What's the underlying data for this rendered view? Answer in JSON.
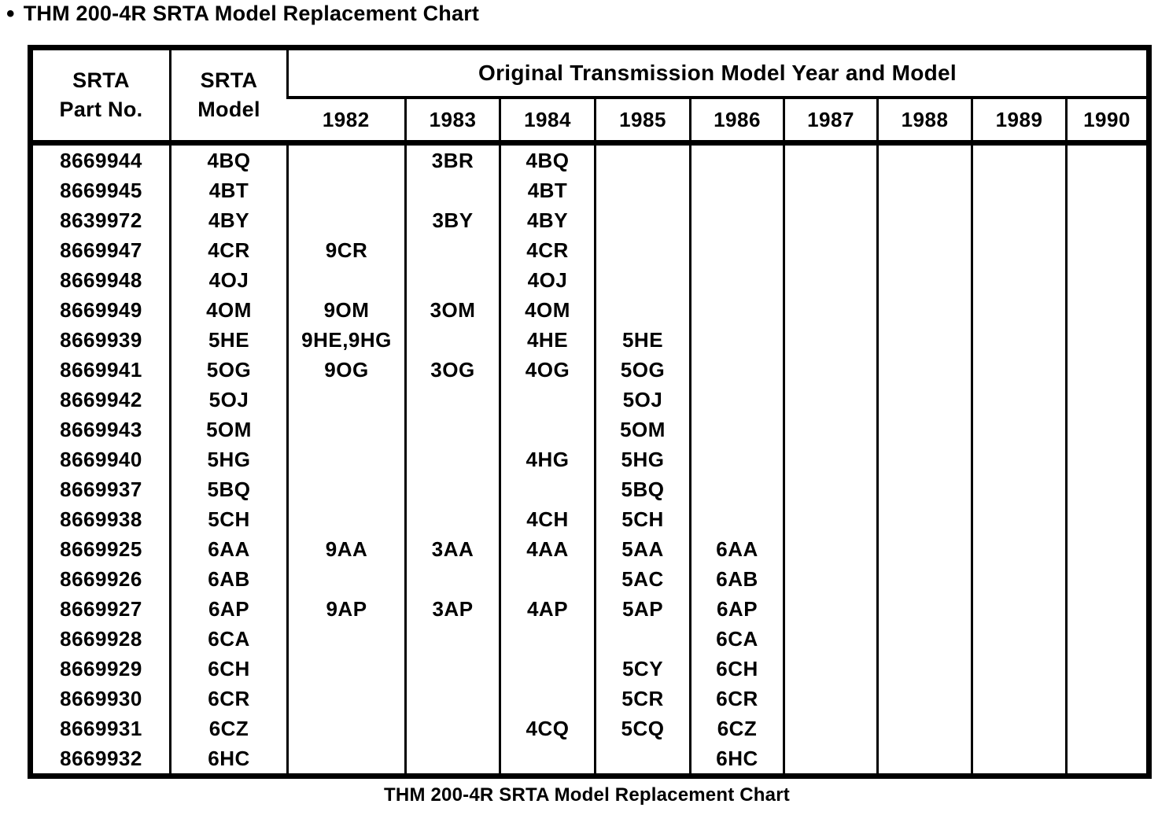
{
  "title": {
    "bullet": "•",
    "text": "THM 200-4R SRTA Model Replacement Chart"
  },
  "caption": "THM 200-4R SRTA Model Replacement Chart",
  "table": {
    "part_no_header": {
      "line1": "SRTA",
      "line2": "Part No."
    },
    "model_header": {
      "line1": "SRTA",
      "line2": "Model"
    },
    "group_header": "Original Transmission Model Year and Model",
    "years": [
      "1982",
      "1983",
      "1984",
      "1985",
      "1986",
      "1987",
      "1988",
      "1989",
      "1990"
    ],
    "rows": [
      {
        "part_no": "8669944",
        "model": "4BQ",
        "cells": [
          "",
          "3BR",
          "4BQ",
          "",
          "",
          "",
          "",
          "",
          ""
        ]
      },
      {
        "part_no": "8669945",
        "model": "4BT",
        "cells": [
          "",
          "",
          "4BT",
          "",
          "",
          "",
          "",
          "",
          ""
        ]
      },
      {
        "part_no": "8639972",
        "model": "4BY",
        "cells": [
          "",
          "3BY",
          "4BY",
          "",
          "",
          "",
          "",
          "",
          ""
        ]
      },
      {
        "part_no": "8669947",
        "model": "4CR",
        "cells": [
          "9CR",
          "",
          "4CR",
          "",
          "",
          "",
          "",
          "",
          ""
        ]
      },
      {
        "part_no": "8669948",
        "model": "4OJ",
        "cells": [
          "",
          "",
          "4OJ",
          "",
          "",
          "",
          "",
          "",
          ""
        ]
      },
      {
        "part_no": "8669949",
        "model": "4OM",
        "cells": [
          "9OM",
          "3OM",
          "4OM",
          "",
          "",
          "",
          "",
          "",
          ""
        ]
      },
      {
        "part_no": "8669939",
        "model": "5HE",
        "cells": [
          "9HE,9HG",
          "",
          "4HE",
          "5HE",
          "",
          "",
          "",
          "",
          ""
        ]
      },
      {
        "part_no": "8669941",
        "model": "5OG",
        "cells": [
          "9OG",
          "3OG",
          "4OG",
          "5OG",
          "",
          "",
          "",
          "",
          ""
        ]
      },
      {
        "part_no": "8669942",
        "model": "5OJ",
        "cells": [
          "",
          "",
          "",
          "5OJ",
          "",
          "",
          "",
          "",
          ""
        ]
      },
      {
        "part_no": "8669943",
        "model": "5OM",
        "cells": [
          "",
          "",
          "",
          "5OM",
          "",
          "",
          "",
          "",
          ""
        ]
      },
      {
        "part_no": "8669940",
        "model": "5HG",
        "cells": [
          "",
          "",
          "4HG",
          "5HG",
          "",
          "",
          "",
          "",
          ""
        ]
      },
      {
        "part_no": "8669937",
        "model": "5BQ",
        "cells": [
          "",
          "",
          "",
          "5BQ",
          "",
          "",
          "",
          "",
          ""
        ]
      },
      {
        "part_no": "8669938",
        "model": "5CH",
        "cells": [
          "",
          "",
          "4CH",
          "5CH",
          "",
          "",
          "",
          "",
          ""
        ]
      },
      {
        "part_no": "8669925",
        "model": "6AA",
        "cells": [
          "9AA",
          "3AA",
          "4AA",
          "5AA",
          "6AA",
          "",
          "",
          "",
          ""
        ]
      },
      {
        "part_no": "8669926",
        "model": "6AB",
        "cells": [
          "",
          "",
          "",
          "5AC",
          "6AB",
          "",
          "",
          "",
          ""
        ]
      },
      {
        "part_no": "8669927",
        "model": "6AP",
        "cells": [
          "9AP",
          "3AP",
          "4AP",
          "5AP",
          "6AP",
          "",
          "",
          "",
          ""
        ]
      },
      {
        "part_no": "8669928",
        "model": "6CA",
        "cells": [
          "",
          "",
          "",
          "",
          "6CA",
          "",
          "",
          "",
          ""
        ]
      },
      {
        "part_no": "8669929",
        "model": "6CH",
        "cells": [
          "",
          "",
          "",
          "5CY",
          "6CH",
          "",
          "",
          "",
          ""
        ]
      },
      {
        "part_no": "8669930",
        "model": "6CR",
        "cells": [
          "",
          "",
          "",
          "5CR",
          "6CR",
          "",
          "",
          "",
          ""
        ]
      },
      {
        "part_no": "8669931",
        "model": "6CZ",
        "cells": [
          "",
          "",
          "4CQ",
          "5CQ",
          "6CZ",
          "",
          "",
          "",
          ""
        ]
      },
      {
        "part_no": "8669932",
        "model": "6HC",
        "cells": [
          "",
          "",
          "",
          "",
          "6HC",
          "",
          "",
          "",
          ""
        ]
      }
    ]
  }
}
